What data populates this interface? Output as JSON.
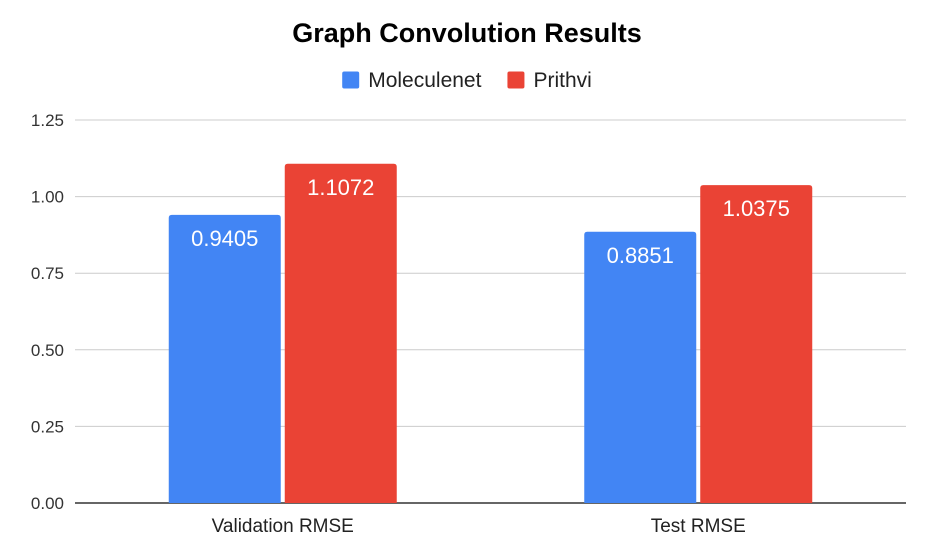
{
  "chart_data": {
    "type": "bar",
    "title": "Graph Convolution Results",
    "categories": [
      "Validation RMSE",
      "Test RMSE"
    ],
    "series": [
      {
        "name": "Moleculenet",
        "values": [
          0.9405,
          0.8851
        ],
        "labels": [
          "0.9405",
          "0.8851"
        ],
        "color": "#4285f4"
      },
      {
        "name": "Prithvi",
        "values": [
          1.1072,
          1.0375
        ],
        "labels": [
          "1.1072",
          "1.0375"
        ],
        "color": "#ea4335"
      }
    ],
    "ylim": [
      0,
      1.25
    ],
    "yticks": [
      "0.00",
      "0.25",
      "0.50",
      "0.75",
      "1.00",
      "1.25"
    ],
    "xlabel": "",
    "ylabel": "",
    "grid": true,
    "legend_position": "top"
  }
}
